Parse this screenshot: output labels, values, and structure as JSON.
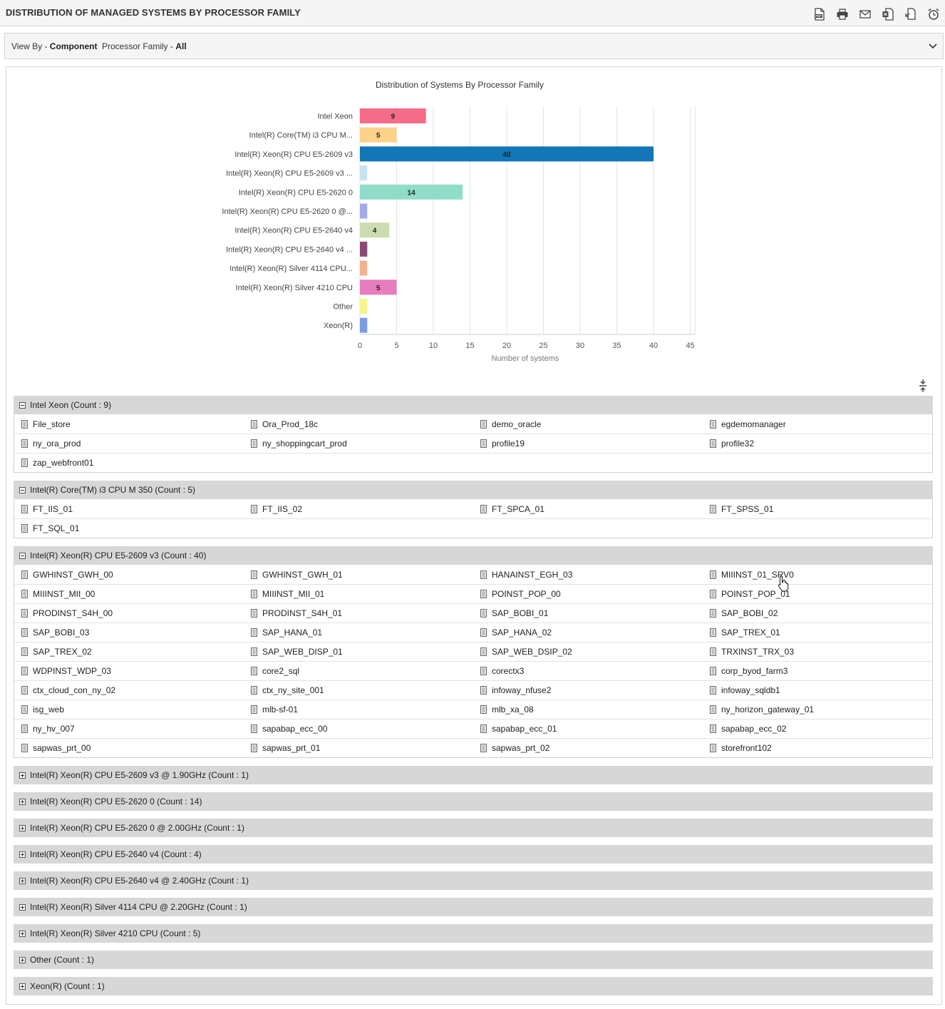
{
  "header": {
    "title": "DISTRIBUTION OF MANAGED SYSTEMS BY PROCESSOR FAMILY",
    "toolbar": [
      {
        "name": "pdf-icon",
        "label": "PDF"
      },
      {
        "name": "print-icon",
        "label": ""
      },
      {
        "name": "mail-icon",
        "label": ""
      },
      {
        "name": "excel-icon",
        "label": "X"
      },
      {
        "name": "export-icon",
        "label": ""
      },
      {
        "name": "alarm-clock-icon",
        "label": ""
      }
    ]
  },
  "filters": {
    "view_by_label": "View By - ",
    "view_by_value": "Component",
    "processor_family_label": "Processor Family - ",
    "processor_family_value": "All"
  },
  "chart_data": {
    "type": "bar",
    "orientation": "horizontal",
    "title": "Distribution of Systems By Processor Family",
    "xlabel": "Number of systems",
    "ylabel": "",
    "xlim": [
      0,
      45
    ],
    "xticks": [
      0,
      5,
      10,
      15,
      20,
      25,
      30,
      35,
      40,
      45
    ],
    "grid": true,
    "categories": [
      "Intel Xeon",
      "Intel(R) Core(TM) i3 CPU M...",
      "Intel(R) Xeon(R) CPU E5-2609 v3",
      "Intel(R) Xeon(R) CPU E5-2609 v3 ...",
      "Intel(R) Xeon(R) CPU E5-2620 0",
      "Intel(R) Xeon(R) CPU E5-2620 0 @...",
      "Intel(R) Xeon(R) CPU E5-2640 v4",
      "Intel(R) Xeon(R) CPU E5-2640 v4 ...",
      "Intel(R) Xeon(R) Silver 4114 CPU...",
      "Intel(R) Xeon(R) Silver 4210 CPU",
      "Other",
      "Xeon(R)"
    ],
    "values": [
      9,
      5,
      40,
      1,
      14,
      1,
      4,
      1,
      1,
      5,
      1,
      1
    ],
    "data_labels": [
      "9",
      "5",
      "40",
      "",
      "14",
      "",
      "4",
      "",
      "",
      "5",
      "",
      ""
    ],
    "colors": [
      "#f56b8a",
      "#fdd38a",
      "#1276b7",
      "#c6e4f0",
      "#8fdcc9",
      "#a3a8ea",
      "#ccdcb0",
      "#8b4a75",
      "#f2b290",
      "#e77dbd",
      "#f5f58a",
      "#7c9be6"
    ]
  },
  "groups": [
    {
      "title": "Intel Xeon (Count : 9)",
      "expanded": true,
      "items": [
        "File_store",
        "Ora_Prod_18c",
        "demo_oracle",
        "egdemomanager",
        "ny_ora_prod",
        "ny_shoppingcart_prod",
        "profile19",
        "profile32",
        "zap_webfront01"
      ]
    },
    {
      "title": "Intel(R) Core(TM) i3 CPU M 350 (Count : 5)",
      "expanded": true,
      "items": [
        "FT_IIS_01",
        "FT_IIS_02",
        "FT_SPCA_01",
        "FT_SPSS_01",
        "FT_SQL_01"
      ]
    },
    {
      "title": "Intel(R) Xeon(R) CPU E5-2609 v3 (Count : 40)",
      "expanded": true,
      "items": [
        "GWHINST_GWH_00",
        "GWHINST_GWH_01",
        "HANAINST_EGH_03",
        "MIIINST_01_SRV0",
        "MIIINST_MII_00",
        "MIIINST_MII_01",
        "POINST_POP_00",
        "POINST_POP_01",
        "PRODINST_S4H_00",
        "PRODINST_S4H_01",
        "SAP_BOBI_01",
        "SAP_BOBI_02",
        "SAP_BOBI_03",
        "SAP_HANA_01",
        "SAP_HANA_02",
        "SAP_TREX_01",
        "SAP_TREX_02",
        "SAP_WEB_DISP_01",
        "SAP_WEB_DSIP_02",
        "TRXINST_TRX_03",
        "WDPINST_WDP_03",
        "core2_sql",
        "corectx3",
        "corp_byod_farm3",
        "ctx_cloud_con_ny_02",
        "ctx_ny_site_001",
        "infoway_nfuse2",
        "infoway_sqldb1",
        "isg_web",
        "mlb-sf-01",
        "mlb_xa_08",
        "ny_horizon_gateway_01",
        "ny_hv_007",
        "sapabap_ecc_00",
        "sapabap_ecc_01",
        "sapabap_ecc_02",
        "sapwas_prt_00",
        "sapwas_prt_01",
        "sapwas_prt_02",
        "storefront102"
      ]
    },
    {
      "title": "Intel(R) Xeon(R) CPU E5-2609 v3 @ 1.90GHz (Count : 1)",
      "expanded": false,
      "items": []
    },
    {
      "title": "Intel(R) Xeon(R) CPU E5-2620 0 (Count : 14)",
      "expanded": false,
      "items": []
    },
    {
      "title": "Intel(R) Xeon(R) CPU E5-2620 0 @ 2.00GHz (Count : 1)",
      "expanded": false,
      "items": []
    },
    {
      "title": "Intel(R) Xeon(R) CPU E5-2640 v4 (Count : 4)",
      "expanded": false,
      "items": []
    },
    {
      "title": "Intel(R) Xeon(R) CPU E5-2640 v4 @ 2.40GHz (Count : 1)",
      "expanded": false,
      "items": []
    },
    {
      "title": "Intel(R) Xeon(R) Silver 4114 CPU @ 2.20GHz (Count : 1)",
      "expanded": false,
      "items": []
    },
    {
      "title": "Intel(R) Xeon(R) Silver 4210 CPU (Count : 5)",
      "expanded": false,
      "items": []
    },
    {
      "title": "Other (Count : 1)",
      "expanded": false,
      "items": []
    },
    {
      "title": "Xeon(R) (Count : 1)",
      "expanded": false,
      "items": []
    }
  ]
}
